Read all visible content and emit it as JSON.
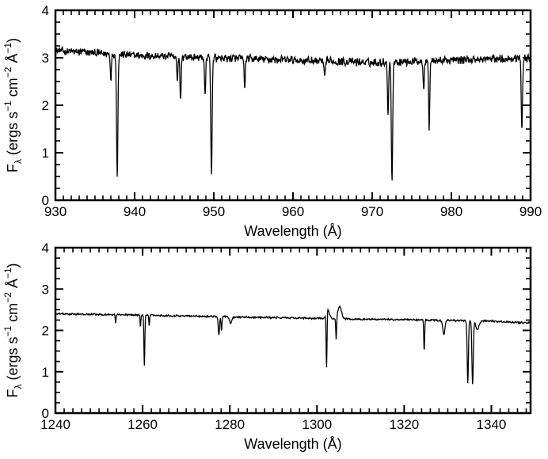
{
  "chart_data": [
    {
      "type": "line",
      "xlabel": "Wavelength (Å)",
      "ylabel": "F_λ (ergs s^-1 cm^-2 Å^-1)",
      "xlim": [
        930,
        990
      ],
      "ylim": [
        0,
        4
      ],
      "xticks": [
        "930",
        "940",
        "950",
        "960",
        "970",
        "980",
        "990"
      ],
      "yticks": [
        "0",
        "1",
        "2",
        "3",
        "4"
      ],
      "grid": false,
      "legend": "none",
      "series": [
        {
          "continuum": [
            [
              930,
              3.15
            ],
            [
              940,
              3.05
            ],
            [
              950,
              3.0
            ],
            [
              960,
              2.95
            ],
            [
              970,
              2.9
            ],
            [
              980,
              2.95
            ],
            [
              990,
              3.0
            ]
          ],
          "noise_amplitude": 0.1,
          "absorption_lines": [
            {
              "x": 937.0,
              "depth": 0.5,
              "width": 0.1
            },
            {
              "x": 937.8,
              "depth": 2.55,
              "width": 0.12
            },
            {
              "x": 945.4,
              "depth": 0.5,
              "width": 0.1
            },
            {
              "x": 945.8,
              "depth": 0.95,
              "width": 0.1
            },
            {
              "x": 948.9,
              "depth": 0.85,
              "width": 0.1
            },
            {
              "x": 949.7,
              "depth": 2.45,
              "width": 0.12
            },
            {
              "x": 953.9,
              "depth": 0.65,
              "width": 0.1
            },
            {
              "x": 964.0,
              "depth": 0.3,
              "width": 0.15
            },
            {
              "x": 972.0,
              "depth": 1.1,
              "width": 0.1
            },
            {
              "x": 972.5,
              "depth": 2.5,
              "width": 0.12
            },
            {
              "x": 976.5,
              "depth": 0.55,
              "width": 0.1
            },
            {
              "x": 977.2,
              "depth": 1.45,
              "width": 0.1
            },
            {
              "x": 988.9,
              "depth": 1.45,
              "width": 0.12
            }
          ]
        }
      ]
    },
    {
      "type": "line",
      "xlabel": "Wavelength (Å)",
      "ylabel": "F_λ (ergs s^-1 cm^-2 Å^-1)",
      "xlim": [
        1240,
        1349
      ],
      "ylim": [
        0,
        4
      ],
      "xticks": [
        "1240",
        "1260",
        "1280",
        "1300",
        "1320",
        "1340"
      ],
      "yticks": [
        "0",
        "1",
        "2",
        "3",
        "4"
      ],
      "grid": false,
      "legend": "none",
      "series": [
        {
          "continuum": [
            [
              1240,
              2.4
            ],
            [
              1260,
              2.37
            ],
            [
              1280,
              2.33
            ],
            [
              1300,
              2.29
            ],
            [
              1310,
              2.27
            ],
            [
              1320,
              2.26
            ],
            [
              1340,
              2.22
            ],
            [
              1349,
              2.18
            ]
          ],
          "noise_amplitude": 0.025,
          "emission_features": [
            {
              "x": 1302.5,
              "height": 0.22,
              "width": 0.5
            },
            {
              "x": 1305.2,
              "height": 0.3,
              "width": 0.6
            }
          ],
          "absorption_lines": [
            {
              "x": 1253.8,
              "depth": 0.2,
              "width": 0.12
            },
            {
              "x": 1259.5,
              "depth": 0.28,
              "width": 0.12
            },
            {
              "x": 1260.4,
              "depth": 1.2,
              "width": 0.15
            },
            {
              "x": 1261.5,
              "depth": 0.25,
              "width": 0.12
            },
            {
              "x": 1277.5,
              "depth": 0.45,
              "width": 0.2
            },
            {
              "x": 1278.1,
              "depth": 0.35,
              "width": 0.15
            },
            {
              "x": 1280.2,
              "depth": 0.15,
              "width": 0.4
            },
            {
              "x": 1302.2,
              "depth": 1.35,
              "width": 0.14
            },
            {
              "x": 1304.4,
              "depth": 0.55,
              "width": 0.14
            },
            {
              "x": 1324.6,
              "depth": 0.75,
              "width": 0.14
            },
            {
              "x": 1329.1,
              "depth": 0.35,
              "width": 0.35
            },
            {
              "x": 1334.6,
              "depth": 1.5,
              "width": 0.2
            },
            {
              "x": 1335.7,
              "depth": 1.55,
              "width": 0.22
            },
            {
              "x": 1336.8,
              "depth": 0.2,
              "width": 0.5
            }
          ]
        }
      ]
    }
  ]
}
